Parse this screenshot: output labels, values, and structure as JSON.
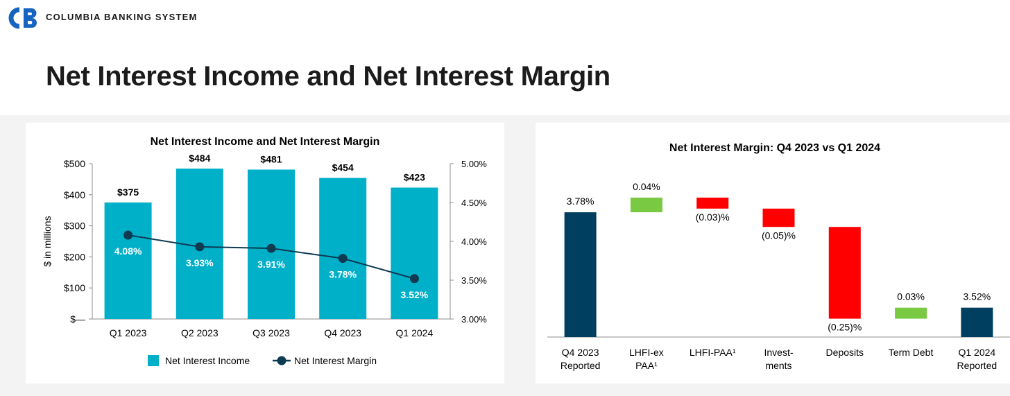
{
  "header": {
    "brand": "COLUMBIA BANKING SYSTEM",
    "title": "Net Interest Income and Net Interest Margin"
  },
  "colors": {
    "bar": "#00b0c8",
    "line": "#0e3a52",
    "dark_bar": "#003f5f",
    "increase": "#7ac943",
    "decrease": "#ff0000",
    "logo": "#1565c0"
  },
  "chart_data": [
    {
      "type": "bar",
      "title": "Net Interest Income and Net Interest Margin",
      "categories": [
        "Q1 2023",
        "Q2 2023",
        "Q3 2023",
        "Q4 2023",
        "Q1 2024"
      ],
      "series": [
        {
          "name": "Net Interest Income",
          "type": "bar",
          "axis": "left",
          "values": [
            375,
            484,
            481,
            454,
            423
          ],
          "labels": [
            "$375",
            "$484",
            "$481",
            "$454",
            "$423"
          ]
        },
        {
          "name": "Net Interest Margin",
          "type": "line",
          "axis": "right",
          "values": [
            4.08,
            3.93,
            3.91,
            3.78,
            3.52
          ],
          "labels": [
            "4.08%",
            "3.93%",
            "3.91%",
            "3.78%",
            "3.52%"
          ]
        }
      ],
      "ylabel": "$ in millions",
      "ylim": [
        0,
        500
      ],
      "y_ticks": [
        "$—",
        "$100",
        "$200",
        "$300",
        "$400",
        "$500"
      ],
      "y2lim": [
        3.0,
        5.0
      ],
      "y2_ticks": [
        "3.00%",
        "3.50%",
        "4.00%",
        "4.50%",
        "5.00%"
      ],
      "legend": {
        "placement": "bottom",
        "entries": [
          "Net Interest Income",
          "Net Interest Margin"
        ]
      },
      "grid": false
    },
    {
      "type": "bar",
      "subtype": "waterfall",
      "title": "Net Interest Margin: Q4 2023 vs Q1 2024",
      "categories": [
        [
          "Q4 2023",
          "Reported"
        ],
        [
          "LHFI-ex",
          "PAA¹"
        ],
        [
          "LHFI-PAA¹"
        ],
        [
          "Invest-",
          "ments"
        ],
        [
          "Deposits"
        ],
        [
          "Term Debt"
        ],
        [
          "Q1 2024",
          "Reported"
        ]
      ],
      "values": [
        3.78,
        0.04,
        -0.03,
        -0.05,
        -0.25,
        0.03,
        3.52
      ],
      "kinds": [
        "total",
        "delta",
        "delta",
        "delta",
        "delta",
        "delta",
        "total"
      ],
      "labels": [
        "3.78%",
        "0.04%",
        "(0.03)%",
        "(0.05)%",
        "(0.25)%",
        "0.03%",
        "3.52%"
      ],
      "grid": false
    }
  ]
}
